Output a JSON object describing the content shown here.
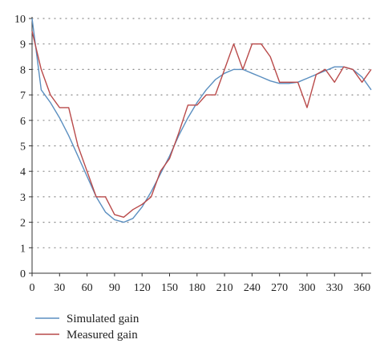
{
  "chart_data": {
    "type": "line",
    "title": "",
    "xlabel": "",
    "ylabel": "",
    "xlim": [
      0,
      370
    ],
    "ylim": [
      0,
      10
    ],
    "x_ticks": [
      0,
      30,
      60,
      90,
      120,
      150,
      180,
      210,
      240,
      270,
      300,
      330,
      360
    ],
    "y_ticks": [
      0,
      1,
      2,
      3,
      4,
      5,
      6,
      7,
      8,
      9,
      10
    ],
    "grid": "horizontal dotted",
    "legend_position": "bottom-left",
    "series": [
      {
        "name": "Simulated gain",
        "color": "#5b8fc0",
        "points": [
          [
            0,
            10
          ],
          [
            10,
            7.2
          ],
          [
            20,
            6.7
          ],
          [
            30,
            6.1
          ],
          [
            40,
            5.4
          ],
          [
            50,
            4.6
          ],
          [
            60,
            3.8
          ],
          [
            70,
            3.0
          ],
          [
            80,
            2.4
          ],
          [
            90,
            2.1
          ],
          [
            100,
            2.0
          ],
          [
            110,
            2.15
          ],
          [
            120,
            2.6
          ],
          [
            130,
            3.2
          ],
          [
            140,
            3.9
          ],
          [
            150,
            4.6
          ],
          [
            160,
            5.4
          ],
          [
            170,
            6.1
          ],
          [
            180,
            6.7
          ],
          [
            190,
            7.2
          ],
          [
            200,
            7.6
          ],
          [
            210,
            7.85
          ],
          [
            220,
            8.0
          ],
          [
            230,
            8.0
          ],
          [
            240,
            7.85
          ],
          [
            250,
            7.7
          ],
          [
            260,
            7.55
          ],
          [
            270,
            7.45
          ],
          [
            280,
            7.45
          ],
          [
            290,
            7.5
          ],
          [
            300,
            7.65
          ],
          [
            310,
            7.8
          ],
          [
            320,
            7.95
          ],
          [
            330,
            8.1
          ],
          [
            340,
            8.1
          ],
          [
            350,
            8.0
          ],
          [
            360,
            7.7
          ],
          [
            370,
            7.2
          ]
        ]
      },
      {
        "name": "Measured gain",
        "color": "#b94a4a",
        "points": [
          [
            0,
            9.5
          ],
          [
            10,
            8.0
          ],
          [
            20,
            7.0
          ],
          [
            30,
            6.5
          ],
          [
            40,
            6.5
          ],
          [
            50,
            5.0
          ],
          [
            60,
            4.0
          ],
          [
            70,
            3.0
          ],
          [
            80,
            3.0
          ],
          [
            90,
            2.3
          ],
          [
            100,
            2.2
          ],
          [
            110,
            2.5
          ],
          [
            120,
            2.7
          ],
          [
            130,
            3.0
          ],
          [
            140,
            4.0
          ],
          [
            150,
            4.5
          ],
          [
            160,
            5.5
          ],
          [
            170,
            6.6
          ],
          [
            180,
            6.6
          ],
          [
            190,
            7.0
          ],
          [
            200,
            7.0
          ],
          [
            210,
            8.0
          ],
          [
            220,
            9.0
          ],
          [
            230,
            8.0
          ],
          [
            240,
            9.0
          ],
          [
            250,
            9.0
          ],
          [
            260,
            8.5
          ],
          [
            270,
            7.5
          ],
          [
            280,
            7.5
          ],
          [
            290,
            7.5
          ],
          [
            300,
            6.5
          ],
          [
            310,
            7.8
          ],
          [
            320,
            8.0
          ],
          [
            330,
            7.5
          ],
          [
            340,
            8.1
          ],
          [
            350,
            8.0
          ],
          [
            360,
            7.5
          ],
          [
            370,
            8.0
          ]
        ]
      }
    ]
  }
}
